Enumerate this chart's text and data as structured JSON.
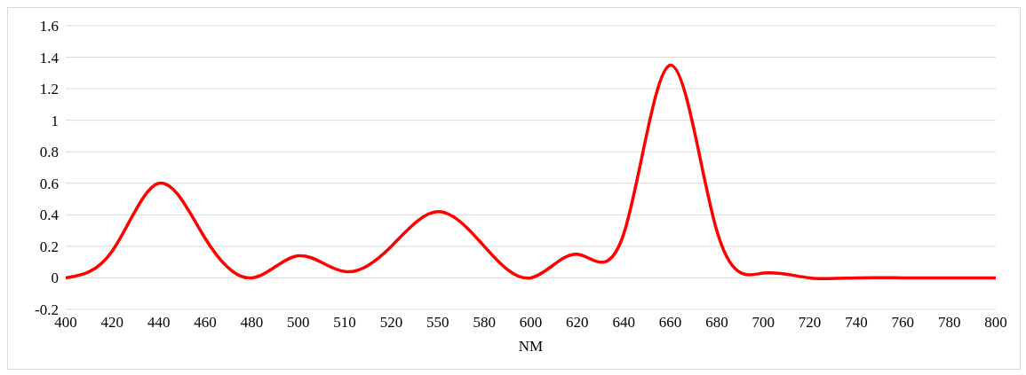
{
  "chart_data": {
    "type": "line",
    "xlabel": "NM",
    "categories": [
      "400",
      "420",
      "440",
      "460",
      "480",
      "500",
      "510",
      "520",
      "550",
      "580",
      "600",
      "620",
      "640",
      "660",
      "680",
      "700",
      "720",
      "740",
      "760",
      "780",
      "800"
    ],
    "series": [
      {
        "color": "#ff0000",
        "values": [
          0,
          0.17,
          0.6,
          0.25,
          0,
          0.14,
          0.04,
          0.2,
          0.42,
          0.2,
          0,
          0.15,
          0.28,
          1.35,
          0.3,
          0.03,
          0,
          0,
          0,
          0,
          0
        ]
      }
    ],
    "ylim": [
      -0.2,
      1.6
    ],
    "yticks": [
      -0.2,
      0,
      0.2,
      0.4,
      0.6,
      0.8,
      1,
      1.2,
      1.4,
      1.6
    ],
    "grid": "y",
    "marker": "none",
    "line_style": "solid"
  }
}
